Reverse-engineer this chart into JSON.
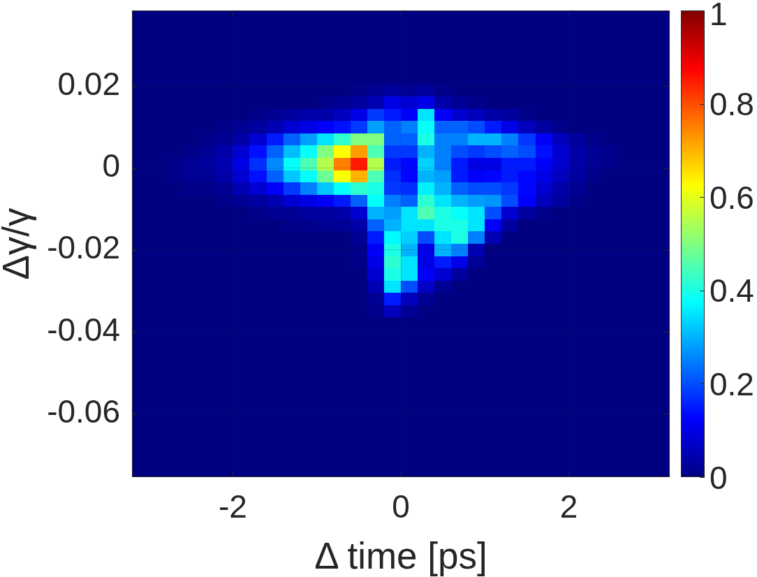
{
  "chart_data": {
    "type": "heatmap",
    "xlabel": "Δ time [ps]",
    "ylabel": "Δγ/γ",
    "x": [
      -3.1,
      -2.9,
      -2.7,
      -2.5,
      -2.3,
      -2.1,
      -1.9,
      -1.7,
      -1.5,
      -1.3,
      -1.1,
      -0.9,
      -0.7,
      -0.5,
      -0.3,
      -0.1,
      0.1,
      0.3,
      0.5,
      0.7,
      0.9,
      1.1,
      1.3,
      1.5,
      1.7,
      1.9,
      2.1,
      2.3,
      2.5,
      2.7,
      2.9,
      3.1
    ],
    "y": [
      0.037,
      0.034,
      0.031,
      0.028,
      0.025,
      0.022,
      0.019,
      0.016,
      0.013,
      0.01,
      0.007,
      0.004,
      0.001,
      -0.002,
      -0.005,
      -0.008,
      -0.011,
      -0.014,
      -0.017,
      -0.02,
      -0.023,
      -0.026,
      -0.029,
      -0.032,
      -0.035,
      -0.038,
      -0.041,
      -0.044,
      -0.047,
      -0.05,
      -0.053,
      -0.056,
      -0.059,
      -0.062,
      -0.065,
      -0.068,
      -0.071,
      -0.074
    ],
    "cells": [
      [
        0,
        0,
        0,
        0,
        0,
        0,
        0,
        0,
        0,
        0,
        0,
        0,
        0,
        0,
        0,
        0,
        0,
        0,
        0,
        0,
        0,
        0,
        0,
        0,
        0,
        0,
        0,
        0,
        0,
        0,
        0,
        0
      ],
      [
        0,
        0,
        0,
        0,
        0,
        0,
        0,
        0,
        0,
        0,
        0,
        0,
        0,
        0,
        0,
        0,
        0,
        0,
        0,
        0,
        0,
        0,
        0,
        0,
        0,
        0,
        0,
        0,
        0,
        0,
        0,
        0
      ],
      [
        0,
        0,
        0,
        0,
        0,
        0,
        0,
        0,
        0,
        0,
        0,
        0,
        0,
        0,
        0,
        0,
        0,
        0,
        0,
        0,
        0,
        0,
        0,
        0,
        0,
        0,
        0,
        0,
        0,
        0,
        0,
        0
      ],
      [
        0,
        0,
        0,
        0,
        0,
        0,
        0,
        0,
        0,
        0,
        0,
        0,
        0,
        0,
        0,
        0,
        0,
        0,
        0,
        0,
        0,
        0,
        0,
        0,
        0,
        0,
        0,
        0,
        0,
        0,
        0,
        0
      ],
      [
        0,
        0,
        0,
        0,
        0,
        0,
        0,
        0,
        0,
        0,
        0,
        0,
        0,
        0,
        0,
        0,
        0,
        0,
        0,
        0,
        0,
        0,
        0,
        0,
        0,
        0,
        0,
        0,
        0,
        0,
        0,
        0
      ],
      [
        0,
        0,
        0,
        0,
        0,
        0,
        0,
        0,
        0,
        0,
        0,
        0,
        0,
        0,
        0,
        0,
        0,
        0,
        0,
        0,
        0,
        0,
        0,
        0,
        0,
        0,
        0,
        0,
        0,
        0,
        0,
        0
      ],
      [
        0,
        0,
        0,
        0,
        0,
        0,
        0,
        0,
        0,
        0,
        0,
        0,
        0,
        0.01,
        0.02,
        0.03,
        0.02,
        0.03,
        0.01,
        0,
        0,
        0,
        0,
        0,
        0,
        0,
        0,
        0,
        0,
        0,
        0,
        0
      ],
      [
        0,
        0,
        0,
        0,
        0,
        0,
        0,
        0,
        0,
        0,
        0,
        0.01,
        0.02,
        0.03,
        0.05,
        0.1,
        0.08,
        0.1,
        0.04,
        0.02,
        0.01,
        0,
        0,
        0,
        0,
        0,
        0,
        0,
        0,
        0,
        0,
        0
      ],
      [
        0,
        0,
        0,
        0,
        0,
        0,
        0,
        0.01,
        0.02,
        0.03,
        0.04,
        0.04,
        0.06,
        0.1,
        0.18,
        0.15,
        0.12,
        0.35,
        0.12,
        0.08,
        0.06,
        0.04,
        0.03,
        0.01,
        0,
        0,
        0,
        0,
        0,
        0,
        0,
        0
      ],
      [
        0,
        0,
        0,
        0,
        0,
        0.01,
        0.02,
        0.03,
        0.05,
        0.08,
        0.1,
        0.12,
        0.14,
        0.18,
        0.28,
        0.22,
        0.25,
        0.38,
        0.22,
        0.22,
        0.2,
        0.15,
        0.1,
        0.06,
        0.03,
        0.01,
        0,
        0,
        0,
        0,
        0,
        0
      ],
      [
        0,
        0,
        0,
        0,
        0.01,
        0.02,
        0.04,
        0.08,
        0.15,
        0.22,
        0.28,
        0.35,
        0.42,
        0.5,
        0.5,
        0.22,
        0.22,
        0.4,
        0.25,
        0.25,
        0.3,
        0.3,
        0.25,
        0.18,
        0.12,
        0.06,
        0.03,
        0.01,
        0,
        0,
        0,
        0
      ],
      [
        0,
        0,
        0,
        0.01,
        0.02,
        0.04,
        0.08,
        0.14,
        0.22,
        0.31,
        0.38,
        0.5,
        0.62,
        0.72,
        0.45,
        0.18,
        0.18,
        0.3,
        0.25,
        0.2,
        0.18,
        0.2,
        0.22,
        0.2,
        0.14,
        0.08,
        0.04,
        0.02,
        0.01,
        0,
        0,
        0
      ],
      [
        0,
        0,
        0.01,
        0.02,
        0.03,
        0.05,
        0.1,
        0.17,
        0.26,
        0.38,
        0.45,
        0.55,
        0.75,
        0.85,
        0.55,
        0.15,
        0.13,
        0.33,
        0.25,
        0.15,
        0.1,
        0.1,
        0.15,
        0.15,
        0.12,
        0.08,
        0.04,
        0.02,
        0.01,
        0,
        0,
        0
      ],
      [
        0,
        0,
        0.01,
        0.02,
        0.02,
        0.04,
        0.08,
        0.14,
        0.22,
        0.32,
        0.38,
        0.48,
        0.62,
        0.7,
        0.45,
        0.17,
        0.13,
        0.3,
        0.28,
        0.15,
        0.12,
        0.13,
        0.15,
        0.13,
        0.1,
        0.06,
        0.03,
        0.01,
        0,
        0,
        0,
        0
      ],
      [
        0,
        0,
        0,
        0.01,
        0.01,
        0.02,
        0.05,
        0.08,
        0.12,
        0.18,
        0.25,
        0.32,
        0.38,
        0.42,
        0.4,
        0.18,
        0.17,
        0.36,
        0.3,
        0.22,
        0.2,
        0.2,
        0.18,
        0.13,
        0.08,
        0.04,
        0.02,
        0,
        0,
        0,
        0,
        0
      ],
      [
        0,
        0,
        0,
        0,
        0,
        0.01,
        0.02,
        0.03,
        0.05,
        0.08,
        0.1,
        0.12,
        0.15,
        0.22,
        0.38,
        0.25,
        0.22,
        0.42,
        0.35,
        0.3,
        0.28,
        0.27,
        0.2,
        0.12,
        0.06,
        0.03,
        0.01,
        0,
        0,
        0,
        0,
        0
      ],
      [
        0,
        0,
        0,
        0,
        0,
        0,
        0,
        0.01,
        0.02,
        0.02,
        0.03,
        0.03,
        0.04,
        0.08,
        0.3,
        0.28,
        0.35,
        0.45,
        0.4,
        0.38,
        0.35,
        0.2,
        0.08,
        0.03,
        0.01,
        0,
        0,
        0,
        0,
        0,
        0,
        0
      ],
      [
        0,
        0,
        0,
        0,
        0,
        0,
        0,
        0,
        0,
        0.01,
        0.01,
        0.02,
        0.02,
        0.04,
        0.22,
        0.3,
        0.35,
        0.35,
        0.4,
        0.4,
        0.35,
        0.12,
        0.03,
        0,
        0,
        0,
        0,
        0,
        0,
        0,
        0,
        0
      ],
      [
        0,
        0,
        0,
        0,
        0,
        0,
        0,
        0,
        0,
        0,
        0,
        0,
        0,
        0.02,
        0.15,
        0.37,
        0.33,
        0.2,
        0.35,
        0.4,
        0.25,
        0.05,
        0,
        0,
        0,
        0,
        0,
        0,
        0,
        0,
        0,
        0
      ],
      [
        0,
        0,
        0,
        0,
        0,
        0,
        0,
        0,
        0,
        0,
        0,
        0,
        0,
        0.01,
        0.12,
        0.4,
        0.3,
        0.1,
        0.3,
        0.25,
        0.05,
        0,
        0,
        0,
        0,
        0,
        0,
        0,
        0,
        0,
        0,
        0
      ],
      [
        0,
        0,
        0,
        0,
        0,
        0,
        0,
        0,
        0,
        0,
        0,
        0,
        0,
        0.01,
        0.1,
        0.42,
        0.35,
        0.1,
        0.15,
        0.1,
        0.02,
        0,
        0,
        0,
        0,
        0,
        0,
        0,
        0,
        0,
        0,
        0
      ],
      [
        0,
        0,
        0,
        0,
        0,
        0,
        0,
        0,
        0,
        0,
        0,
        0,
        0,
        0,
        0.08,
        0.4,
        0.35,
        0.12,
        0.08,
        0.03,
        0,
        0,
        0,
        0,
        0,
        0,
        0,
        0,
        0,
        0,
        0,
        0
      ],
      [
        0,
        0,
        0,
        0,
        0,
        0,
        0,
        0,
        0,
        0,
        0,
        0,
        0,
        0,
        0.05,
        0.35,
        0.2,
        0.07,
        0.02,
        0,
        0,
        0,
        0,
        0,
        0,
        0,
        0,
        0,
        0,
        0,
        0,
        0
      ],
      [
        0,
        0,
        0,
        0,
        0,
        0,
        0,
        0,
        0,
        0,
        0,
        0,
        0,
        0,
        0.02,
        0.15,
        0.06,
        0.02,
        0,
        0,
        0,
        0,
        0,
        0,
        0,
        0,
        0,
        0,
        0,
        0,
        0,
        0
      ],
      [
        0,
        0,
        0,
        0,
        0,
        0,
        0,
        0,
        0,
        0,
        0,
        0,
        0,
        0,
        0.01,
        0.06,
        0.02,
        0,
        0,
        0,
        0,
        0,
        0,
        0,
        0,
        0,
        0,
        0,
        0,
        0,
        0,
        0
      ],
      [
        0,
        0,
        0,
        0,
        0,
        0,
        0,
        0,
        0,
        0,
        0,
        0,
        0,
        0,
        0,
        0,
        0,
        0,
        0,
        0,
        0,
        0,
        0,
        0,
        0,
        0,
        0,
        0,
        0,
        0,
        0,
        0
      ],
      [
        0,
        0,
        0,
        0,
        0,
        0,
        0,
        0,
        0,
        0,
        0,
        0,
        0,
        0,
        0,
        0,
        0,
        0,
        0,
        0,
        0,
        0,
        0,
        0,
        0,
        0,
        0,
        0,
        0,
        0,
        0,
        0
      ],
      [
        0,
        0,
        0,
        0,
        0,
        0,
        0,
        0,
        0,
        0,
        0,
        0,
        0,
        0,
        0,
        0,
        0,
        0,
        0,
        0,
        0,
        0,
        0,
        0,
        0,
        0,
        0,
        0,
        0,
        0,
        0,
        0
      ],
      [
        0,
        0,
        0,
        0,
        0,
        0,
        0,
        0,
        0,
        0,
        0,
        0,
        0,
        0,
        0,
        0,
        0,
        0,
        0,
        0,
        0,
        0,
        0,
        0,
        0,
        0,
        0,
        0,
        0,
        0,
        0,
        0
      ],
      [
        0,
        0,
        0,
        0,
        0,
        0,
        0,
        0,
        0,
        0,
        0,
        0,
        0,
        0,
        0,
        0,
        0,
        0,
        0,
        0,
        0,
        0,
        0,
        0,
        0,
        0,
        0,
        0,
        0,
        0,
        0,
        0
      ],
      [
        0,
        0,
        0,
        0,
        0,
        0,
        0,
        0,
        0,
        0,
        0,
        0,
        0,
        0,
        0,
        0,
        0,
        0,
        0,
        0,
        0,
        0,
        0,
        0,
        0,
        0,
        0,
        0,
        0,
        0,
        0,
        0
      ],
      [
        0,
        0,
        0,
        0,
        0,
        0,
        0,
        0,
        0,
        0,
        0,
        0,
        0,
        0,
        0,
        0,
        0,
        0,
        0,
        0,
        0,
        0,
        0,
        0,
        0,
        0,
        0,
        0,
        0,
        0,
        0,
        0
      ],
      [
        0,
        0,
        0,
        0,
        0,
        0,
        0,
        0,
        0,
        0,
        0,
        0,
        0,
        0,
        0,
        0,
        0,
        0,
        0,
        0,
        0,
        0,
        0,
        0,
        0,
        0,
        0,
        0,
        0,
        0,
        0,
        0
      ],
      [
        0,
        0,
        0,
        0,
        0,
        0,
        0,
        0,
        0,
        0,
        0,
        0,
        0,
        0,
        0,
        0,
        0,
        0,
        0,
        0,
        0,
        0,
        0,
        0,
        0,
        0,
        0,
        0,
        0,
        0,
        0,
        0
      ],
      [
        0,
        0,
        0,
        0,
        0,
        0,
        0,
        0,
        0,
        0,
        0,
        0,
        0,
        0,
        0,
        0,
        0,
        0,
        0,
        0,
        0,
        0,
        0,
        0,
        0,
        0,
        0,
        0,
        0,
        0,
        0,
        0
      ],
      [
        0,
        0,
        0,
        0,
        0,
        0,
        0,
        0,
        0,
        0,
        0,
        0,
        0,
        0,
        0,
        0,
        0,
        0,
        0,
        0,
        0,
        0,
        0,
        0,
        0,
        0,
        0,
        0,
        0,
        0,
        0,
        0
      ],
      [
        0,
        0,
        0,
        0,
        0,
        0,
        0,
        0,
        0,
        0,
        0,
        0,
        0,
        0,
        0,
        0,
        0,
        0,
        0,
        0,
        0,
        0,
        0,
        0,
        0,
        0,
        0,
        0,
        0,
        0,
        0,
        0
      ],
      [
        0,
        0,
        0,
        0,
        0,
        0,
        0,
        0,
        0,
        0,
        0,
        0,
        0,
        0,
        0,
        0,
        0,
        0,
        0,
        0,
        0,
        0,
        0,
        0,
        0,
        0,
        0,
        0,
        0,
        0,
        0,
        0
      ]
    ],
    "xlim": [
      -3.2,
      3.2
    ],
    "xticks": [
      -2,
      0,
      2
    ],
    "ylim": [
      -0.0755,
      0.0385
    ],
    "yticks": [
      -0.06,
      -0.04,
      -0.02,
      0,
      0.02
    ],
    "clim": [
      0,
      1
    ],
    "cticks": [
      0,
      0.2,
      0.4,
      0.6,
      0.8,
      1
    ],
    "grid": true
  }
}
